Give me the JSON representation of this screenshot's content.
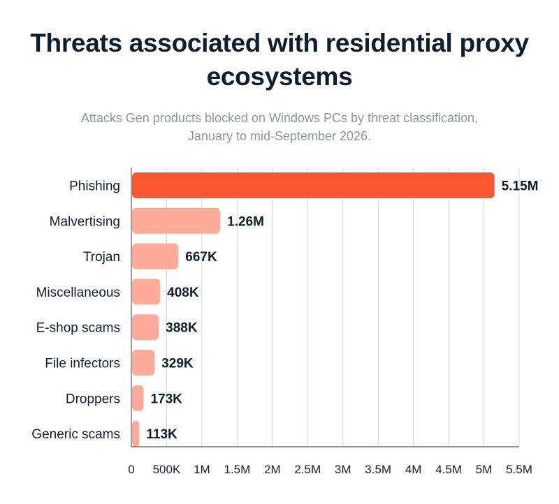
{
  "chart_data": {
    "type": "bar",
    "orientation": "horizontal",
    "title_line1": "Threats associated with residential proxy",
    "title_line2": "ecosystems",
    "subtitle_line1": "Attacks Gen products blocked on Windows PCs by threat classification,",
    "subtitle_line2": "January to mid-September 2026.",
    "categories": [
      "Phishing",
      "Malvertising",
      "Trojan",
      "Miscellaneous",
      "E-shop scams",
      "File infectors",
      "Droppers",
      "Generic scams"
    ],
    "values": [
      5150000,
      1260000,
      667000,
      408000,
      388000,
      329000,
      173000,
      113000
    ],
    "value_labels": [
      "5.15M",
      "1.26M",
      "667K",
      "408K",
      "388K",
      "329K",
      "173K",
      "113K"
    ],
    "xticks": [
      0,
      500000,
      1000000,
      1500000,
      2000000,
      2500000,
      3000000,
      3500000,
      4000000,
      4500000,
      5000000,
      5500000
    ],
    "xtick_labels": [
      "0",
      "500K",
      "1M",
      "1.5M",
      "2M",
      "2.5M",
      "3M",
      "3.5M",
      "4M",
      "4.5M",
      "5M",
      "5.5M"
    ],
    "xlim": [
      0,
      5500000
    ],
    "grid": "vertical",
    "colors": {
      "highlight": "#ff5533",
      "bar": "#ffab98",
      "grid": "#d2d6da",
      "axis": "#555a60",
      "text": "#0f1e2d",
      "subtitle": "#8d969e"
    }
  }
}
